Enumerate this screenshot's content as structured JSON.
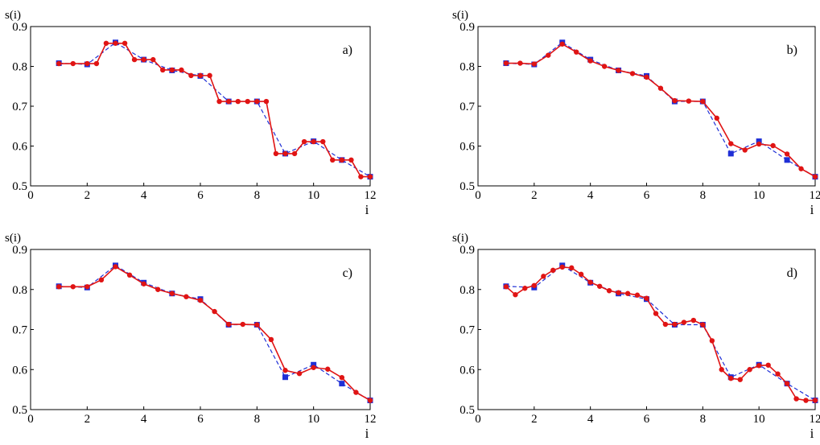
{
  "chart_data": [
    {
      "type": "line",
      "panel_label": "a)",
      "ylabel": "s(i)",
      "xlabel": "i",
      "xlim": [
        0,
        12
      ],
      "ylim": [
        0.5,
        0.9
      ],
      "xticks": [
        0,
        2,
        4,
        6,
        8,
        10,
        12
      ],
      "yticks": [
        0.5,
        0.6,
        0.7,
        0.8,
        0.9
      ],
      "colors": {
        "reference": "#1f2fd6",
        "approx": "#e01414"
      },
      "series": [
        {
          "style": "dashed",
          "marker": "square",
          "x": [
            1,
            2,
            3,
            4,
            5,
            6,
            7,
            8,
            9,
            10,
            11,
            12
          ],
          "y": [
            0.808,
            0.805,
            0.86,
            0.817,
            0.79,
            0.776,
            0.712,
            0.712,
            0.581,
            0.612,
            0.565,
            0.523
          ]
        },
        {
          "style": "solid",
          "marker": "circle",
          "x": [
            1,
            1.5,
            2,
            2.33,
            2.67,
            3,
            3.33,
            3.67,
            4,
            4.33,
            4.67,
            5,
            5.33,
            5.67,
            6,
            6.33,
            6.67,
            7,
            7.33,
            7.67,
            8,
            8.33,
            8.67,
            9,
            9.33,
            9.67,
            10,
            10.33,
            10.67,
            11,
            11.33,
            11.67,
            12
          ],
          "y": [
            0.807,
            0.807,
            0.807,
            0.807,
            0.858,
            0.858,
            0.858,
            0.817,
            0.817,
            0.817,
            0.791,
            0.791,
            0.791,
            0.777,
            0.777,
            0.777,
            0.712,
            0.712,
            0.712,
            0.712,
            0.712,
            0.712,
            0.581,
            0.581,
            0.581,
            0.611,
            0.611,
            0.611,
            0.565,
            0.565,
            0.565,
            0.523,
            0.523
          ]
        }
      ]
    },
    {
      "type": "line",
      "panel_label": "b)",
      "ylabel": "s(i)",
      "xlabel": "i",
      "xlim": [
        0,
        12
      ],
      "ylim": [
        0.5,
        0.9
      ],
      "xticks": [
        0,
        2,
        4,
        6,
        8,
        10,
        12
      ],
      "yticks": [
        0.5,
        0.6,
        0.7,
        0.8,
        0.9
      ],
      "colors": {
        "reference": "#1f2fd6",
        "approx": "#e01414"
      },
      "series": [
        {
          "style": "dashed",
          "marker": "square",
          "x": [
            1,
            2,
            3,
            4,
            5,
            6,
            7,
            8,
            9,
            10,
            11,
            12
          ],
          "y": [
            0.808,
            0.805,
            0.86,
            0.817,
            0.79,
            0.776,
            0.712,
            0.712,
            0.581,
            0.612,
            0.565,
            0.523
          ]
        },
        {
          "style": "solid",
          "marker": "circle",
          "x": [
            1,
            1.5,
            2,
            2.5,
            3,
            3.5,
            4,
            4.5,
            5,
            5.5,
            6,
            6.5,
            7,
            7.5,
            8,
            8.5,
            9,
            9.5,
            10,
            10.5,
            11,
            11.5,
            12
          ],
          "y": [
            0.808,
            0.808,
            0.806,
            0.828,
            0.856,
            0.836,
            0.814,
            0.8,
            0.79,
            0.782,
            0.773,
            0.745,
            0.714,
            0.713,
            0.712,
            0.67,
            0.606,
            0.59,
            0.605,
            0.601,
            0.58,
            0.543,
            0.523
          ]
        }
      ]
    },
    {
      "type": "line",
      "panel_label": "c)",
      "ylabel": "s(i)",
      "xlabel": "i",
      "xlim": [
        0,
        12
      ],
      "ylim": [
        0.5,
        0.9
      ],
      "xticks": [
        0,
        2,
        4,
        6,
        8,
        10,
        12
      ],
      "yticks": [
        0.5,
        0.6,
        0.7,
        0.8,
        0.9
      ],
      "colors": {
        "reference": "#1f2fd6",
        "approx": "#e01414"
      },
      "series": [
        {
          "style": "dashed",
          "marker": "square",
          "x": [
            1,
            2,
            3,
            4,
            5,
            6,
            7,
            8,
            9,
            10,
            11,
            12
          ],
          "y": [
            0.808,
            0.805,
            0.86,
            0.817,
            0.79,
            0.776,
            0.712,
            0.712,
            0.581,
            0.612,
            0.565,
            0.523
          ]
        },
        {
          "style": "solid",
          "marker": "circle",
          "x": [
            1,
            1.5,
            2,
            2.5,
            3,
            3.5,
            4,
            4.5,
            5,
            5.5,
            6,
            6.5,
            7,
            7.5,
            8,
            8.5,
            9,
            9.5,
            10,
            10.5,
            11,
            11.5,
            12
          ],
          "y": [
            0.807,
            0.807,
            0.807,
            0.824,
            0.857,
            0.836,
            0.814,
            0.8,
            0.79,
            0.782,
            0.773,
            0.745,
            0.713,
            0.713,
            0.712,
            0.675,
            0.598,
            0.59,
            0.605,
            0.601,
            0.58,
            0.543,
            0.523
          ]
        }
      ]
    },
    {
      "type": "line",
      "panel_label": "d)",
      "ylabel": "s(i)",
      "xlabel": "i",
      "xlim": [
        0,
        12
      ],
      "ylim": [
        0.5,
        0.9
      ],
      "xticks": [
        0,
        2,
        4,
        6,
        8,
        10,
        12
      ],
      "yticks": [
        0.5,
        0.6,
        0.7,
        0.8,
        0.9
      ],
      "colors": {
        "reference": "#1f2fd6",
        "approx": "#e01414"
      },
      "series": [
        {
          "style": "dashed",
          "marker": "square",
          "x": [
            1,
            2,
            3,
            4,
            5,
            6,
            7,
            8,
            9,
            10,
            11,
            12
          ],
          "y": [
            0.808,
            0.805,
            0.86,
            0.817,
            0.79,
            0.776,
            0.712,
            0.712,
            0.581,
            0.612,
            0.565,
            0.523
          ]
        },
        {
          "style": "solid",
          "marker": "circle",
          "x": [
            1,
            1.33,
            1.67,
            2,
            2.33,
            2.67,
            3,
            3.33,
            3.67,
            4,
            4.33,
            4.67,
            5,
            5.33,
            5.67,
            6,
            6.33,
            6.67,
            7,
            7.33,
            7.67,
            8,
            8.33,
            8.67,
            9,
            9.33,
            9.67,
            10,
            10.33,
            10.67,
            11,
            11.33,
            11.67,
            12
          ],
          "y": [
            0.807,
            0.787,
            0.803,
            0.81,
            0.833,
            0.848,
            0.856,
            0.854,
            0.838,
            0.818,
            0.808,
            0.797,
            0.792,
            0.79,
            0.786,
            0.778,
            0.74,
            0.713,
            0.713,
            0.718,
            0.723,
            0.712,
            0.672,
            0.6,
            0.578,
            0.575,
            0.6,
            0.61,
            0.611,
            0.589,
            0.565,
            0.527,
            0.523,
            0.523
          ]
        }
      ]
    }
  ]
}
